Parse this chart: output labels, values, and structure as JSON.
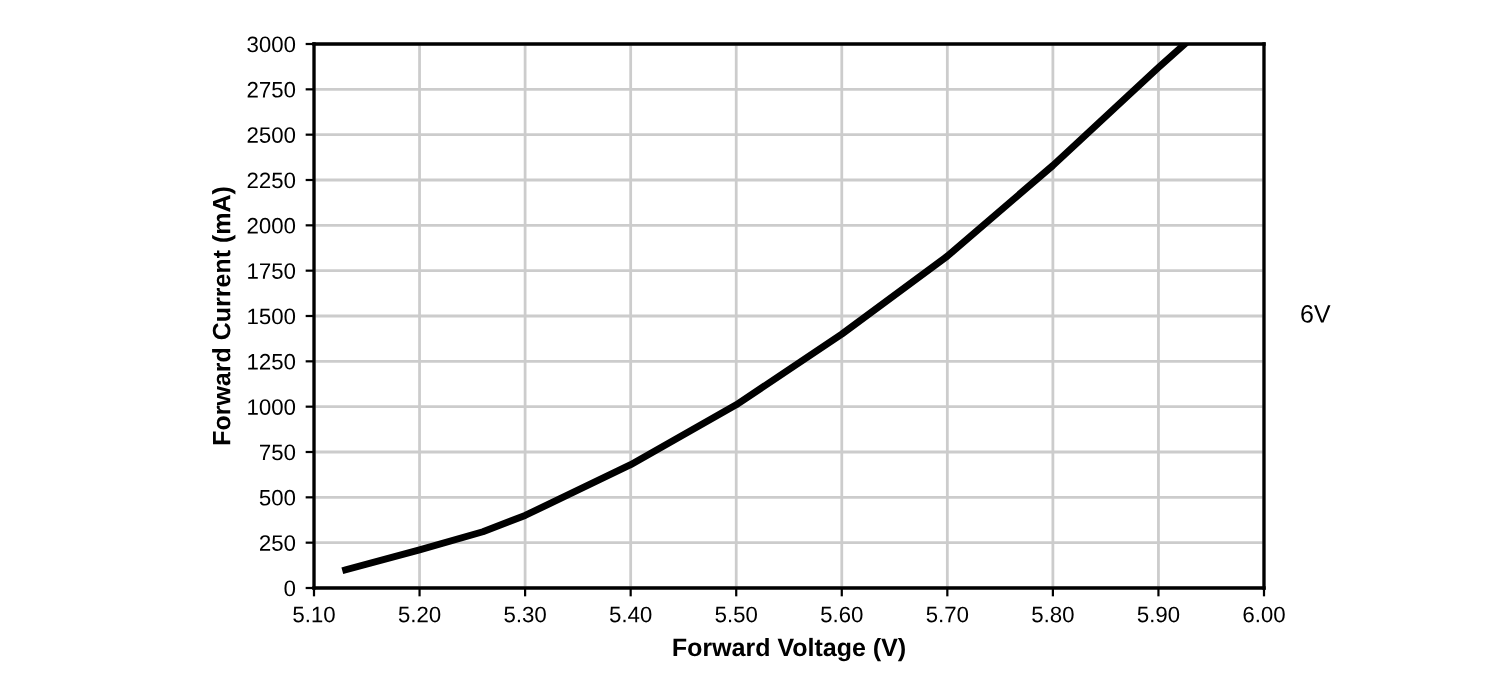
{
  "chart_data": {
    "type": "line",
    "xlabel": "Forward Voltage (V)",
    "ylabel": "Forward Current (mA)",
    "x": [
      5.13,
      5.2,
      5.26,
      5.3,
      5.4,
      5.5,
      5.6,
      5.7,
      5.8,
      5.9,
      5.925
    ],
    "series": [
      {
        "color": "#000000",
        "values": [
          100,
          210,
          310,
          400,
          680,
          1010,
          1400,
          1830,
          2330,
          2870,
          3000
        ]
      }
    ],
    "xlim": [
      5.1,
      6.0
    ],
    "ylim": [
      0,
      3000
    ],
    "xticks": [
      {
        "value": 5.1,
        "label": "5.10"
      },
      {
        "value": 5.2,
        "label": "5.20"
      },
      {
        "value": 5.3,
        "label": "5.30"
      },
      {
        "value": 5.4,
        "label": "5.40"
      },
      {
        "value": 5.5,
        "label": "5.50"
      },
      {
        "value": 5.6,
        "label": "5.60"
      },
      {
        "value": 5.7,
        "label": "5.70"
      },
      {
        "value": 5.8,
        "label": "5.80"
      },
      {
        "value": 5.9,
        "label": "5.90"
      },
      {
        "value": 6.0,
        "label": "6.00"
      }
    ],
    "yticks": [
      0,
      250,
      500,
      750,
      1000,
      1250,
      1500,
      1750,
      2000,
      2250,
      2500,
      2750,
      3000
    ],
    "grid": true,
    "marker": "none",
    "line_style": "solid",
    "legend": false,
    "annotations": [
      "6V"
    ]
  }
}
